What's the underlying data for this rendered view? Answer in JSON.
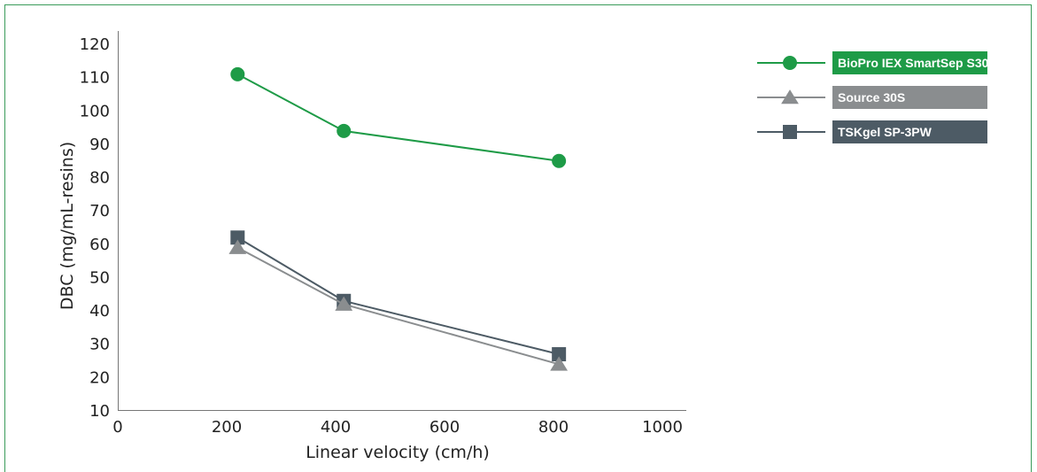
{
  "chart_data": {
    "type": "line",
    "xlabel": "Linear velocity (cm/h)",
    "ylabel": "DBC (mg/mL-resins)",
    "xlim": [
      0,
      1000
    ],
    "ylim": [
      10,
      120
    ],
    "xticks": [
      0,
      200,
      400,
      600,
      800,
      1000
    ],
    "yticks": [
      10,
      20,
      30,
      40,
      50,
      60,
      70,
      80,
      90,
      100,
      110,
      120
    ],
    "grid": false,
    "legend_position": "top-right",
    "series": [
      {
        "name": "BioPro IEX SmartSep S30",
        "marker": "circle",
        "color": "#1e9b47",
        "x": [
          220,
          415,
          810
        ],
        "y": [
          111,
          94,
          85
        ]
      },
      {
        "name": "Source 30S",
        "marker": "triangle",
        "color": "#8a8d8f",
        "x": [
          220,
          415,
          810
        ],
        "y": [
          59,
          42,
          24
        ]
      },
      {
        "name": "TSKgel SP-3PW",
        "marker": "square",
        "color": "#4d5b65",
        "x": [
          220,
          415,
          810
        ],
        "y": [
          62,
          43,
          27
        ]
      }
    ]
  }
}
